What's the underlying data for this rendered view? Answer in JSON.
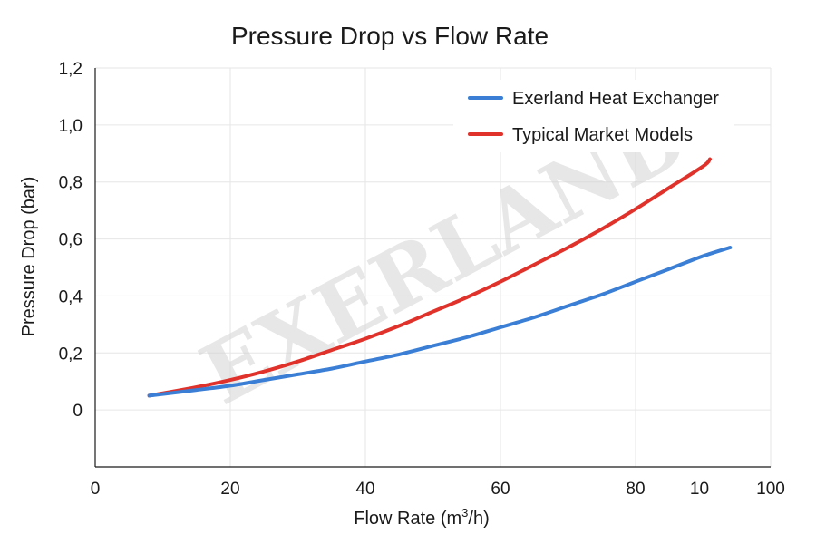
{
  "chart_data": {
    "type": "line",
    "title": "Pressure Drop vs Flow Rate",
    "xlabel_main": "Flow Rate (m",
    "xlabel_sup": "3",
    "xlabel_tail": "/h)",
    "ylabel": "Pressure Drop (bar)",
    "xlim": [
      0,
      100
    ],
    "ylim": [
      -0.2,
      1.2
    ],
    "x_ticks": [
      {
        "value": 0,
        "label": "0"
      },
      {
        "value": 20,
        "label": "20"
      },
      {
        "value": 40,
        "label": "40"
      },
      {
        "value": 60,
        "label": "60"
      },
      {
        "value": 80,
        "label": "80"
      },
      {
        "value": 100,
        "label": "100"
      }
    ],
    "x_extra_tick": {
      "value": 90,
      "label": "10"
    },
    "y_ticks": [
      {
        "value": 0,
        "label": "0"
      },
      {
        "value": 0.2,
        "label": "0,2"
      },
      {
        "value": 0.4,
        "label": "0,4"
      },
      {
        "value": 0.6,
        "label": "0,6"
      },
      {
        "value": 0.8,
        "label": "0,8"
      },
      {
        "value": 1.0,
        "label": "1,0"
      },
      {
        "value": 1.2,
        "label": "1,2"
      }
    ],
    "legend_position": "top-right",
    "watermark": "EXERLAND",
    "series": [
      {
        "name": "Exerland Heat Exchanger",
        "color": "#3a7fd5",
        "x": [
          8,
          15,
          20,
          25,
          30,
          35,
          40,
          45,
          50,
          55,
          60,
          65,
          70,
          75,
          80,
          85,
          90,
          94
        ],
        "y": [
          0.05,
          0.07,
          0.085,
          0.105,
          0.125,
          0.145,
          0.17,
          0.195,
          0.225,
          0.255,
          0.29,
          0.325,
          0.365,
          0.405,
          0.45,
          0.495,
          0.54,
          0.57
        ]
      },
      {
        "name": "Typical Market Models",
        "color": "#e0322a",
        "x": [
          8,
          15,
          20,
          25,
          30,
          35,
          40,
          45,
          50,
          55,
          60,
          65,
          70,
          75,
          80,
          85,
          90,
          91
        ],
        "y": [
          0.05,
          0.08,
          0.105,
          0.135,
          0.17,
          0.21,
          0.25,
          0.295,
          0.345,
          0.395,
          0.45,
          0.51,
          0.57,
          0.635,
          0.705,
          0.78,
          0.855,
          0.88
        ]
      }
    ]
  }
}
